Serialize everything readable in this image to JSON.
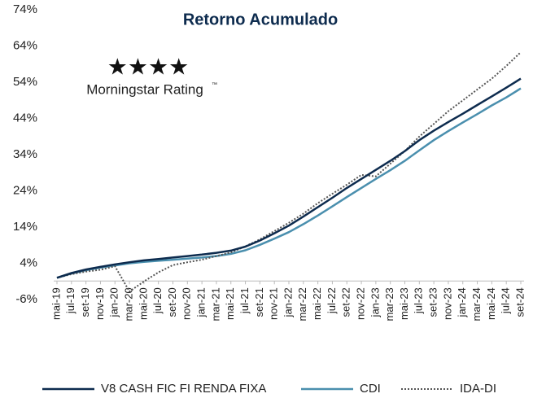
{
  "chart_data": {
    "type": "line",
    "title": "Retorno Acumulado",
    "annotations": {
      "stars": "★★★★",
      "rating": "Morningstar Rating",
      "trademark": "™"
    },
    "categories": [
      "mai-19",
      "jul-19",
      "set-19",
      "nov-19",
      "jan-20",
      "mar-20",
      "mai-20",
      "jul-20",
      "set-20",
      "nov-20",
      "jan-21",
      "mar-21",
      "mai-21",
      "jul-21",
      "set-21",
      "nov-21",
      "jan-22",
      "mar-22",
      "mai-22",
      "jul-22",
      "set-22",
      "nov-22",
      "jan-23",
      "mar-23",
      "mai-23",
      "jul-23",
      "set-23",
      "nov-23",
      "jan-24",
      "mar-24",
      "mai-24",
      "jul-24",
      "set-24"
    ],
    "series": [
      {
        "name": "V8 CASH FIC FI RENDA FIXA",
        "color": "#0d2b4e",
        "style": "solid",
        "values": [
          0,
          1.3,
          2.3,
          3.0,
          3.7,
          4.3,
          4.8,
          5.2,
          5.6,
          6.0,
          6.4,
          6.9,
          7.5,
          8.6,
          10.3,
          12.3,
          14.4,
          16.9,
          19.5,
          22.1,
          24.8,
          27.3,
          29.8,
          32.3,
          35.0,
          38.0,
          40.6,
          43.0,
          45.3,
          47.7,
          50.1,
          52.5,
          55.0
        ]
      },
      {
        "name": "CDI",
        "color": "#4a8fae",
        "style": "solid",
        "values": [
          0,
          1.2,
          2.1,
          2.8,
          3.4,
          4.0,
          4.4,
          4.7,
          5.0,
          5.3,
          5.6,
          6.0,
          6.6,
          7.6,
          9.1,
          10.8,
          12.6,
          14.8,
          17.2,
          19.7,
          22.3,
          24.8,
          27.3,
          29.7,
          32.3,
          35.2,
          38.0,
          40.5,
          42.9,
          45.2,
          47.6,
          49.8,
          52.3
        ]
      },
      {
        "name": "IDA-DI",
        "color": "#555555",
        "style": "dotted",
        "values": [
          0,
          1.0,
          1.7,
          2.2,
          3.2,
          -3.8,
          -1.0,
          1.5,
          3.5,
          4.3,
          5.0,
          6.0,
          7.0,
          8.7,
          10.6,
          12.9,
          15.2,
          17.7,
          20.6,
          23.2,
          25.7,
          28.4,
          28.0,
          31.5,
          35.0,
          39.0,
          42.5,
          46.0,
          49.0,
          52.0,
          55.0,
          58.5,
          62.3
        ]
      }
    ],
    "ylim": [
      -6,
      74
    ],
    "yticks": [
      {
        "value": -6,
        "label": "-6%"
      },
      {
        "value": 4,
        "label": "4%"
      },
      {
        "value": 14,
        "label": "14%"
      },
      {
        "value": 24,
        "label": "24%"
      },
      {
        "value": 34,
        "label": "34%"
      },
      {
        "value": 44,
        "label": "44%"
      },
      {
        "value": 54,
        "label": "54%"
      },
      {
        "value": 64,
        "label": "64%"
      },
      {
        "value": 74,
        "label": "74%"
      }
    ],
    "grid": false,
    "legend": "bottom"
  }
}
